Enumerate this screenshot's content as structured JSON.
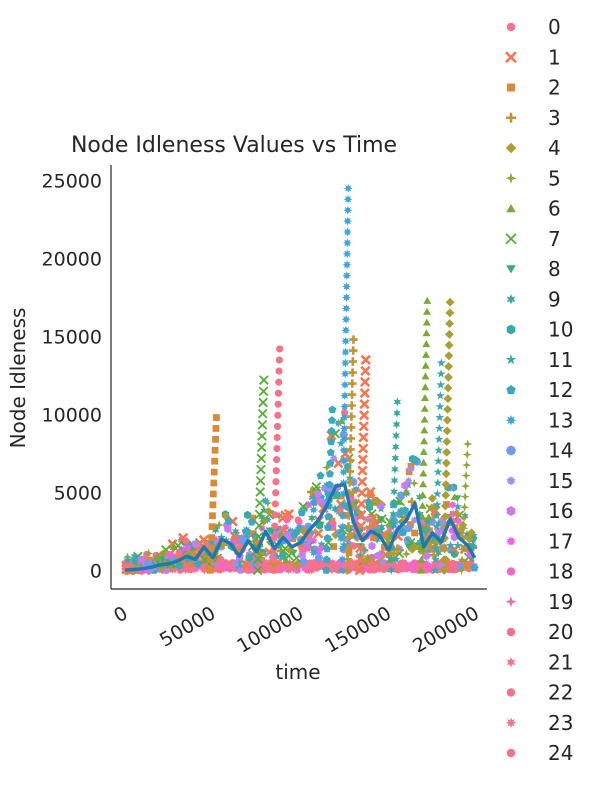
{
  "chart_data": {
    "type": "scatter",
    "title": "Node Idleness Values vs Time",
    "xlabel": "time",
    "ylabel": "Node Idleness",
    "xlim": [
      -8000,
      206000
    ],
    "ylim": [
      -1200,
      26000
    ],
    "xticks": [
      0,
      50000,
      100000,
      150000,
      200000
    ],
    "yticks": [
      0,
      5000,
      10000,
      15000,
      20000,
      25000
    ],
    "grid": false,
    "legend_position": "outside-right",
    "legend_entries": [
      "0",
      "1",
      "2",
      "3",
      "4",
      "5",
      "6",
      "7",
      "8",
      "9",
      "10",
      "11",
      "12",
      "13",
      "14",
      "15",
      "16",
      "17",
      "18",
      "19",
      "20",
      "21",
      "22",
      "23",
      "24"
    ],
    "palette": [
      "#f77189",
      "#f7754f",
      "#dc8932",
      "#c39532",
      "#ae9d31",
      "#97a431",
      "#77ab31",
      "#50b131",
      "#33b07a",
      "#35ad9c",
      "#36ada4",
      "#37abb4",
      "#38a9c5",
      "#3aa5df",
      "#6e9bf4",
      "#a48cf4",
      "#cc7af4",
      "#f45cf2",
      "#f565cc",
      "#f66bad",
      "#f77189",
      "#f77189",
      "#f77189",
      "#f77189",
      "#f77189"
    ],
    "markers": [
      "circle",
      "x",
      "square",
      "plus",
      "diamond",
      "star4",
      "triangle-up",
      "x-thin",
      "triangle-down",
      "star6",
      "hexagon",
      "star5",
      "pentagon",
      "star8",
      "octagon",
      "star10",
      "hexagon2",
      "star12",
      "circle",
      "star4",
      "circle",
      "star6",
      "circle",
      "star8",
      "circle"
    ],
    "peaks": [
      {
        "series": 0,
        "x": 88000,
        "y": 14200
      },
      {
        "series": 1,
        "x": 137000,
        "y": 13500
      },
      {
        "series": 2,
        "x": 52000,
        "y": 9800
      },
      {
        "series": 3,
        "x": 130000,
        "y": 14800
      },
      {
        "series": 4,
        "x": 185000,
        "y": 17200
      },
      {
        "series": 5,
        "x": 195000,
        "y": 8100
      },
      {
        "series": 6,
        "x": 172000,
        "y": 17300
      },
      {
        "series": 7,
        "x": 79000,
        "y": 12200
      },
      {
        "series": 11,
        "x": 180000,
        "y": 13300
      },
      {
        "series": 13,
        "x": 127000,
        "y": 24500
      },
      {
        "series": 9,
        "x": 155000,
        "y": 10800
      },
      {
        "series": 12,
        "x": 118000,
        "y": 10300
      }
    ],
    "mean_line": {
      "color": "#1f77b4",
      "x": [
        0,
        5000,
        10000,
        15000,
        20000,
        25000,
        30000,
        35000,
        40000,
        45000,
        50000,
        55000,
        60000,
        65000,
        70000,
        75000,
        80000,
        85000,
        90000,
        95000,
        100000,
        105000,
        110000,
        115000,
        120000,
        125000,
        130000,
        135000,
        140000,
        145000,
        150000,
        155000,
        160000,
        165000,
        170000,
        175000,
        180000,
        185000,
        190000,
        195000,
        199000
      ],
      "y": [
        20,
        50,
        100,
        200,
        350,
        420,
        600,
        900,
        700,
        1500,
        800,
        2000,
        1700,
        900,
        1900,
        1200,
        2500,
        1400,
        2100,
        1500,
        1800,
        2600,
        3200,
        4200,
        5400,
        5500,
        3100,
        1900,
        2500,
        2200,
        1300,
        2600,
        3200,
        4300,
        1500,
        2400,
        1800,
        3300,
        2100,
        1600,
        800
      ]
    }
  }
}
